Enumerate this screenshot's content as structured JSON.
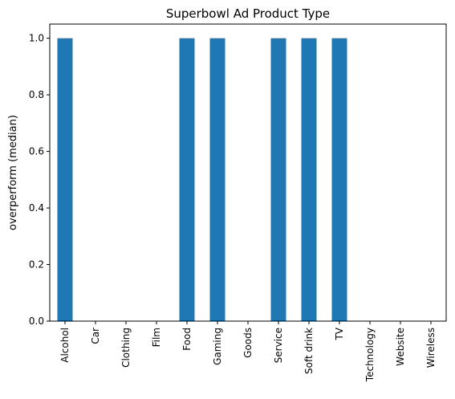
{
  "chart_data": {
    "type": "bar",
    "title": "Superbowl Ad Product Type",
    "xlabel": "",
    "ylabel": "overperform (median)",
    "categories": [
      "Alcohol",
      "Car",
      "Clothing",
      "Film",
      "Food",
      "Gaming",
      "Goods",
      "Service",
      "Soft drink",
      "TV",
      "Technology",
      "Website",
      "Wireless"
    ],
    "values": [
      1,
      0,
      0,
      0,
      1,
      1,
      0,
      1,
      1,
      1,
      0,
      0,
      0
    ],
    "ylim": [
      0,
      1.05
    ],
    "yticks": [
      "0.0",
      "0.2",
      "0.4",
      "0.6",
      "0.8",
      "1.0"
    ],
    "grid": false,
    "bar_color": "#1f77b4"
  }
}
